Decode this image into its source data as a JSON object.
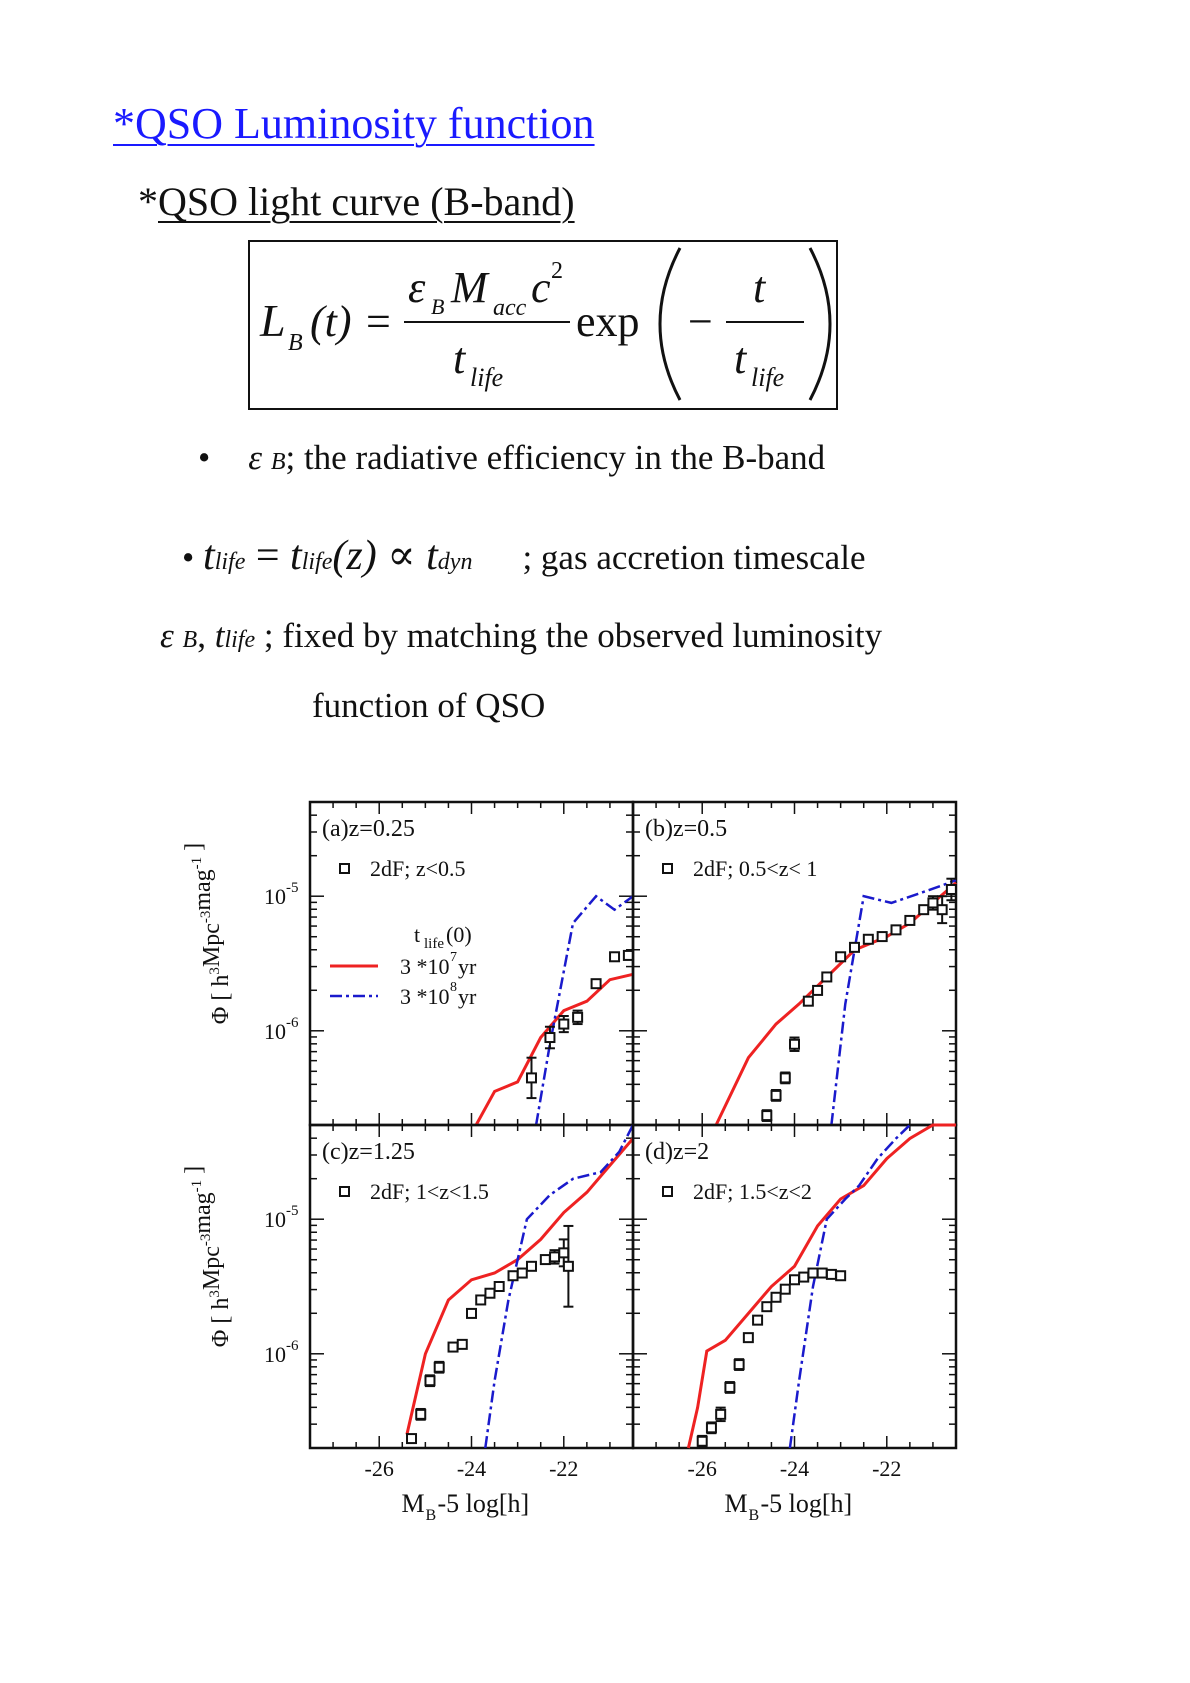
{
  "heading": {
    "title": "*QSO Luminosity function",
    "star": "*",
    "subtitle": "QSO light curve (B-band)"
  },
  "formula": {
    "lhs_L": "L",
    "lhs_sub": "B",
    "lhs_arg": "(t)",
    "eq": "=",
    "num_eps": "ε",
    "num_eps_sub": "B",
    "num_M": "M",
    "num_M_sub": "acc",
    "num_c": "c",
    "num_c_sup": "2",
    "den_t": "t",
    "den_sub": "life",
    "exp": "exp",
    "minus": "−",
    "inner_num": "t",
    "inner_den_t": "t",
    "inner_den_sub": "life"
  },
  "bullets": {
    "b1_dot": "•",
    "b1_eps": "ε",
    "b1_sub": "B",
    "b1_text": "; the radiative efficiency in the B-band",
    "b2_dot": "•",
    "b2_t1": "t",
    "b2_s1": "life",
    "b2_eq": " = ",
    "b2_t2": "t",
    "b2_s2": "life",
    "b2_arg": "(z)",
    "b2_prop": " ∝ ",
    "b2_t3": "t",
    "b2_s3": "dyn",
    "b2_text": "; gas accretion timescale",
    "l3_eps": "ε",
    "l3_sub": "B",
    "l3_comma": ", ",
    "l3_t": "t",
    "l3_tsub": "life",
    "l3_text": " ; fixed by matching the observed luminosity",
    "l4_text": "function of QSO"
  },
  "chart_data": {
    "type": "line",
    "xlabel": "M_B-5 log[h]",
    "xlabel_main": "M",
    "xlabel_sub": "B",
    "xlabel_rest": "-5 log[h]",
    "ylabel": "Φ  [ h^3Mpc^-3mag^-1 ]",
    "ylabel_phi": "Φ",
    "ylabel_open": "[ h",
    "ylabel_s1": "3",
    "ylabel_mid": "Mpc",
    "ylabel_s2": "-3",
    "ylabel_mid2": "mag",
    "ylabel_s3": "-1",
    "ylabel_close": " ]",
    "xlim": [
      -27.5,
      -20.5
    ],
    "ylim_log10": [
      -6.7,
      -4.3
    ],
    "xticks": [
      -26,
      -24,
      -22
    ],
    "xtick_labels": [
      "-26",
      "-24",
      "-22"
    ],
    "ytick_labels": [
      {
        "base": "10",
        "exp": "-5"
      },
      {
        "base": "10",
        "exp": "-6"
      }
    ],
    "ytick_log10": [
      -5,
      -6
    ],
    "legend": {
      "header_t": "t",
      "header_sub": "life",
      "header_arg": "(0)",
      "red_label": "3 *10",
      "red_sup": "7",
      "red_unit": " yr",
      "blue_label": "3 *10",
      "blue_sup": "8",
      "blue_unit": " yr"
    },
    "panels": [
      {
        "label": "(a)z=0.25",
        "data_label": "2dF; z<0.5",
        "red": [
          [
            -23.9,
            -6.7
          ],
          [
            -23.5,
            -6.45
          ],
          [
            -23.0,
            -6.38
          ],
          [
            -22.5,
            -6.05
          ],
          [
            -22.0,
            -5.85
          ],
          [
            -21.5,
            -5.78
          ],
          [
            -21.0,
            -5.62
          ],
          [
            -20.5,
            -5.58
          ]
        ],
        "blue": [
          [
            -22.6,
            -6.7
          ],
          [
            -22.3,
            -6.1
          ],
          [
            -21.8,
            -5.2
          ],
          [
            -21.3,
            -5.0
          ],
          [
            -20.9,
            -5.1
          ],
          [
            -20.5,
            -5.0
          ]
        ],
        "obs": [
          [
            -22.7,
            -6.35,
            0.15
          ],
          [
            -22.3,
            -6.05,
            0.08
          ],
          [
            -22.0,
            -5.95,
            0.06
          ],
          [
            -21.7,
            -5.9,
            0.05
          ],
          [
            -21.3,
            -5.65,
            0.03
          ],
          [
            -20.9,
            -5.45,
            0.02
          ],
          [
            -20.6,
            -5.44,
            0.02
          ]
        ]
      },
      {
        "label": "(b)z=0.5",
        "data_label": "2dF; 0.5<z< 1",
        "red": [
          [
            -25.7,
            -6.7
          ],
          [
            -25.0,
            -6.2
          ],
          [
            -24.4,
            -5.95
          ],
          [
            -23.9,
            -5.8
          ],
          [
            -23.3,
            -5.6
          ],
          [
            -22.7,
            -5.4
          ],
          [
            -22.0,
            -5.3
          ],
          [
            -21.5,
            -5.2
          ],
          [
            -21.0,
            -5.05
          ],
          [
            -20.5,
            -4.9
          ]
        ],
        "blue": [
          [
            -23.2,
            -6.7
          ],
          [
            -22.9,
            -5.8
          ],
          [
            -22.5,
            -5.0
          ],
          [
            -21.9,
            -5.05
          ],
          [
            -21.3,
            -4.98
          ],
          [
            -20.8,
            -4.92
          ],
          [
            -20.5,
            -4.88
          ]
        ],
        "obs": [
          [
            -24.6,
            -6.63,
            0.04
          ],
          [
            -24.4,
            -6.48,
            0.04
          ],
          [
            -24.2,
            -6.35,
            0.04
          ],
          [
            -24.0,
            -6.1,
            0.05
          ],
          [
            -23.7,
            -5.78,
            0.02
          ],
          [
            -23.5,
            -5.7,
            0.02
          ],
          [
            -23.3,
            -5.6,
            0.02
          ],
          [
            -23.0,
            -5.45,
            0.02
          ],
          [
            -22.7,
            -5.38,
            0.02
          ],
          [
            -22.4,
            -5.32,
            0.02
          ],
          [
            -22.1,
            -5.3,
            0.02
          ],
          [
            -21.8,
            -5.25,
            0.02
          ],
          [
            -21.5,
            -5.18,
            0.02
          ],
          [
            -21.2,
            -5.1,
            0.02
          ],
          [
            -21.0,
            -5.05,
            0.05
          ],
          [
            -20.8,
            -5.1,
            0.1
          ],
          [
            -20.6,
            -4.95,
            0.08
          ]
        ]
      },
      {
        "label": "(c)z=1.25",
        "data_label": "2dF; 1<z<1.5",
        "red": [
          [
            -25.4,
            -6.6
          ],
          [
            -25.0,
            -6.0
          ],
          [
            -24.5,
            -5.6
          ],
          [
            -24.0,
            -5.45
          ],
          [
            -23.5,
            -5.4
          ],
          [
            -23.0,
            -5.3
          ],
          [
            -22.5,
            -5.15
          ],
          [
            -22.0,
            -4.95
          ],
          [
            -21.5,
            -4.8
          ],
          [
            -21.0,
            -4.6
          ],
          [
            -20.5,
            -4.4
          ]
        ],
        "blue": [
          [
            -23.7,
            -6.7
          ],
          [
            -23.5,
            -6.2
          ],
          [
            -23.2,
            -5.6
          ],
          [
            -22.8,
            -5.0
          ],
          [
            -22.3,
            -4.82
          ],
          [
            -21.8,
            -4.7
          ],
          [
            -21.2,
            -4.65
          ],
          [
            -20.8,
            -4.5
          ],
          [
            -20.5,
            -4.3
          ]
        ],
        "obs": [
          [
            -25.3,
            -6.63,
            0.03
          ],
          [
            -25.1,
            -6.45,
            0.04
          ],
          [
            -24.9,
            -6.2,
            0.04
          ],
          [
            -24.7,
            -6.1,
            0.04
          ],
          [
            -24.4,
            -5.95,
            0.03
          ],
          [
            -24.2,
            -5.93,
            0.03
          ],
          [
            -24.0,
            -5.7,
            0.02
          ],
          [
            -23.8,
            -5.6,
            0.02
          ],
          [
            -23.6,
            -5.55,
            0.02
          ],
          [
            -23.4,
            -5.5,
            0.02
          ],
          [
            -23.1,
            -5.42,
            0.02
          ],
          [
            -22.9,
            -5.4,
            0.02
          ],
          [
            -22.7,
            -5.35,
            0.02
          ],
          [
            -22.4,
            -5.3,
            0.03
          ],
          [
            -22.2,
            -5.28,
            0.05
          ],
          [
            -22.0,
            -5.25,
            0.1
          ],
          [
            -21.9,
            -5.35,
            0.3
          ]
        ]
      },
      {
        "label": "(d)z=2",
        "data_label": "2dF; 1.5<z<2",
        "red": [
          [
            -26.3,
            -6.7
          ],
          [
            -26.1,
            -6.4
          ],
          [
            -25.9,
            -5.98
          ],
          [
            -25.5,
            -5.9
          ],
          [
            -25.0,
            -5.7
          ],
          [
            -24.5,
            -5.5
          ],
          [
            -24.0,
            -5.35
          ],
          [
            -23.5,
            -5.05
          ],
          [
            -23.0,
            -4.85
          ],
          [
            -22.5,
            -4.75
          ],
          [
            -22.0,
            -4.55
          ],
          [
            -21.5,
            -4.4
          ],
          [
            -21.0,
            -4.3
          ],
          [
            -20.5,
            -4.3
          ]
        ],
        "blue": [
          [
            -24.1,
            -6.7
          ],
          [
            -23.9,
            -6.2
          ],
          [
            -23.6,
            -5.5
          ],
          [
            -23.3,
            -5.0
          ],
          [
            -22.9,
            -4.85
          ],
          [
            -22.6,
            -4.75
          ],
          [
            -22.2,
            -4.55
          ],
          [
            -21.8,
            -4.4
          ],
          [
            -21.5,
            -4.3
          ]
        ],
        "obs": [
          [
            -26.0,
            -6.65,
            0.04
          ],
          [
            -25.8,
            -6.55,
            0.04
          ],
          [
            -25.6,
            -6.45,
            0.05
          ],
          [
            -25.4,
            -6.25,
            0.04
          ],
          [
            -25.2,
            -6.08,
            0.04
          ],
          [
            -25.0,
            -5.88,
            0.03
          ],
          [
            -24.8,
            -5.75,
            0.02
          ],
          [
            -24.6,
            -5.65,
            0.02
          ],
          [
            -24.4,
            -5.58,
            0.02
          ],
          [
            -24.2,
            -5.52,
            0.02
          ],
          [
            -24.0,
            -5.45,
            0.02
          ],
          [
            -23.8,
            -5.43,
            0.02
          ],
          [
            -23.6,
            -5.4,
            0.02
          ],
          [
            -23.4,
            -5.4,
            0.02
          ],
          [
            -23.2,
            -5.41,
            0.02
          ],
          [
            -23.0,
            -5.42,
            0.02
          ]
        ]
      }
    ]
  }
}
